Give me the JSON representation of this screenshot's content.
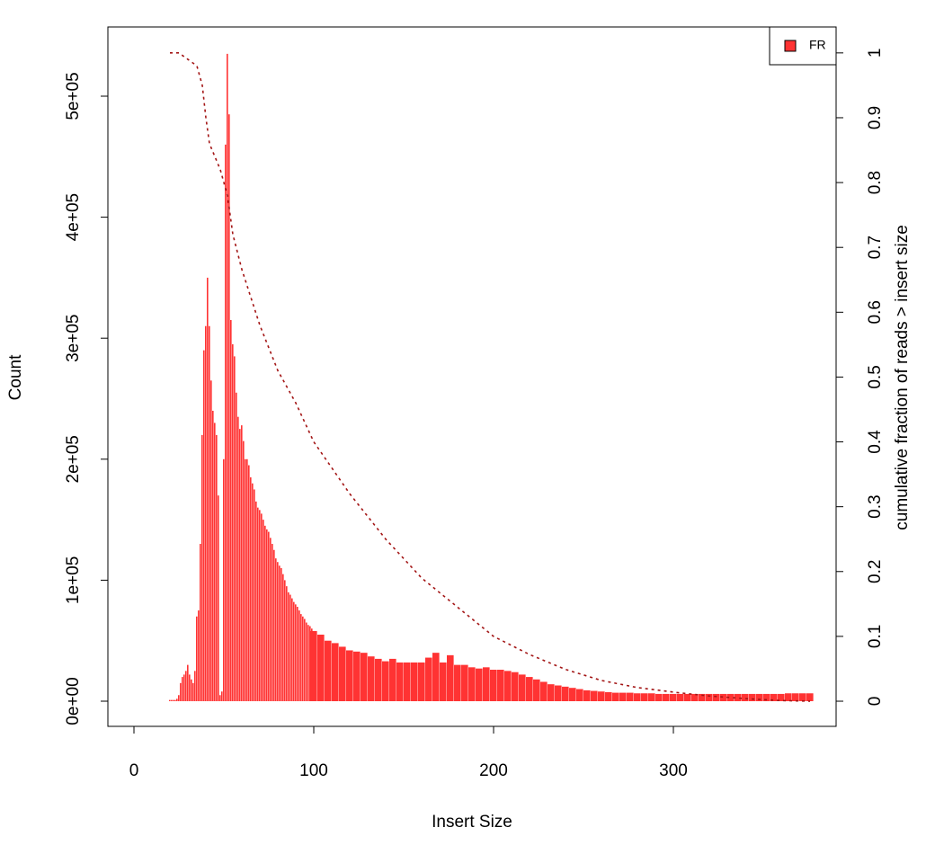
{
  "chart_data": {
    "type": "bar",
    "xlabel": "Insert Size",
    "ylabel": "Count",
    "y2label": "cumulative fraction of reads > insert size",
    "x": [
      20,
      21,
      22,
      23,
      24,
      25,
      26,
      27,
      28,
      29,
      30,
      31,
      32,
      33,
      34,
      35,
      36,
      37,
      38,
      39,
      40,
      41,
      42,
      43,
      44,
      45,
      46,
      47,
      48,
      49,
      50,
      51,
      52,
      53,
      54,
      55,
      56,
      57,
      58,
      59,
      60,
      61,
      62,
      63,
      64,
      65,
      66,
      67,
      68,
      69,
      70,
      71,
      72,
      73,
      74,
      75,
      76,
      77,
      78,
      79,
      80,
      81,
      82,
      83,
      84,
      85,
      86,
      87,
      88,
      89,
      90,
      91,
      92,
      93,
      94,
      95,
      96,
      97,
      98,
      99,
      100,
      104,
      108,
      112,
      116,
      120,
      124,
      128,
      132,
      136,
      140,
      144,
      148,
      152,
      156,
      160,
      164,
      168,
      172,
      176,
      180,
      184,
      188,
      192,
      196,
      200,
      204,
      208,
      212,
      216,
      220,
      224,
      228,
      232,
      236,
      240,
      244,
      248,
      252,
      256,
      260,
      264,
      268,
      272,
      276,
      280,
      284,
      288,
      292,
      296,
      300,
      304,
      308,
      312,
      316,
      320,
      324,
      328,
      332,
      336,
      340,
      344,
      348,
      352,
      356,
      360,
      364,
      368,
      372,
      376
    ],
    "series": [
      {
        "name": "FR",
        "color": "#ff3333",
        "values": [
          1000,
          1000,
          1000,
          1000,
          2000,
          5000,
          15000,
          20000,
          22000,
          25000,
          30000,
          22000,
          18000,
          15000,
          25000,
          70000,
          75000,
          130000,
          220000,
          290000,
          310000,
          350000,
          310000,
          265000,
          240000,
          230000,
          220000,
          170000,
          5000,
          8000,
          200000,
          460000,
          535000,
          485000,
          315000,
          295000,
          285000,
          255000,
          235000,
          225000,
          228000,
          215000,
          200000,
          200000,
          195000,
          185000,
          180000,
          175000,
          165000,
          160000,
          158000,
          155000,
          150000,
          145000,
          142000,
          140000,
          135000,
          130000,
          125000,
          118000,
          115000,
          112000,
          110000,
          105000,
          100000,
          95000,
          90000,
          88000,
          85000,
          82000,
          80000,
          78000,
          75000,
          72000,
          70000,
          68000,
          65000,
          63000,
          62000,
          60000,
          58000,
          55000,
          50000,
          48000,
          45000,
          42000,
          41000,
          40000,
          37000,
          35000,
          33000,
          35000,
          32000,
          32000,
          32000,
          32000,
          36000,
          40000,
          32000,
          38000,
          30000,
          30000,
          28000,
          27000,
          28000,
          26000,
          26000,
          25000,
          24000,
          22000,
          20000,
          18000,
          16000,
          14000,
          13000,
          12000,
          11000,
          10000,
          9000,
          8500,
          8000,
          7500,
          7000,
          7000,
          7000,
          6500,
          6500,
          6500,
          6000,
          6000,
          6000,
          6000,
          6000,
          6000,
          6000,
          6000,
          6000,
          6000,
          6000,
          6000,
          6000,
          6000,
          6000,
          6000,
          6000,
          6000,
          6500,
          6500,
          6500,
          6500
        ]
      },
      {
        "type": "line",
        "axis": "y2",
        "color": "#a31515",
        "dashed": true,
        "x": [
          20,
          25,
          30,
          35,
          38,
          40,
          42,
          45,
          48,
          50,
          52,
          55,
          60,
          70,
          80,
          90,
          100,
          120,
          140,
          160,
          180,
          200,
          220,
          240,
          260,
          280,
          300,
          320,
          340,
          360,
          376
        ],
        "values": [
          1,
          1,
          0.99,
          0.98,
          0.95,
          0.9,
          0.86,
          0.84,
          0.82,
          0.8,
          0.78,
          0.72,
          0.666,
          0.58,
          0.51,
          0.46,
          0.4,
          0.32,
          0.25,
          0.19,
          0.145,
          0.1,
          0.072,
          0.049,
          0.032,
          0.021,
          0.014,
          0.008,
          0.004,
          0.001,
          0
        ]
      }
    ],
    "xlim": [
      -14.5,
      390.5
    ],
    "xticks": [
      0,
      100,
      200,
      300
    ],
    "ylim": [
      -20800,
      557200
    ],
    "yticks": [
      {
        "value": 0,
        "label": "0e+00"
      },
      {
        "value": 100000,
        "label": "1e+05"
      },
      {
        "value": 200000,
        "label": "2e+05"
      },
      {
        "value": 300000,
        "label": "3e+05"
      },
      {
        "value": 400000,
        "label": "4e+05"
      },
      {
        "value": 500000,
        "label": "5e+05"
      }
    ],
    "y2lim": [
      -0.0388,
      1.04
    ],
    "y2ticks": [
      0,
      0.1,
      0.2,
      0.3,
      0.4,
      0.5,
      0.6,
      0.7,
      0.8,
      0.9,
      1
    ],
    "legend": "topright"
  }
}
